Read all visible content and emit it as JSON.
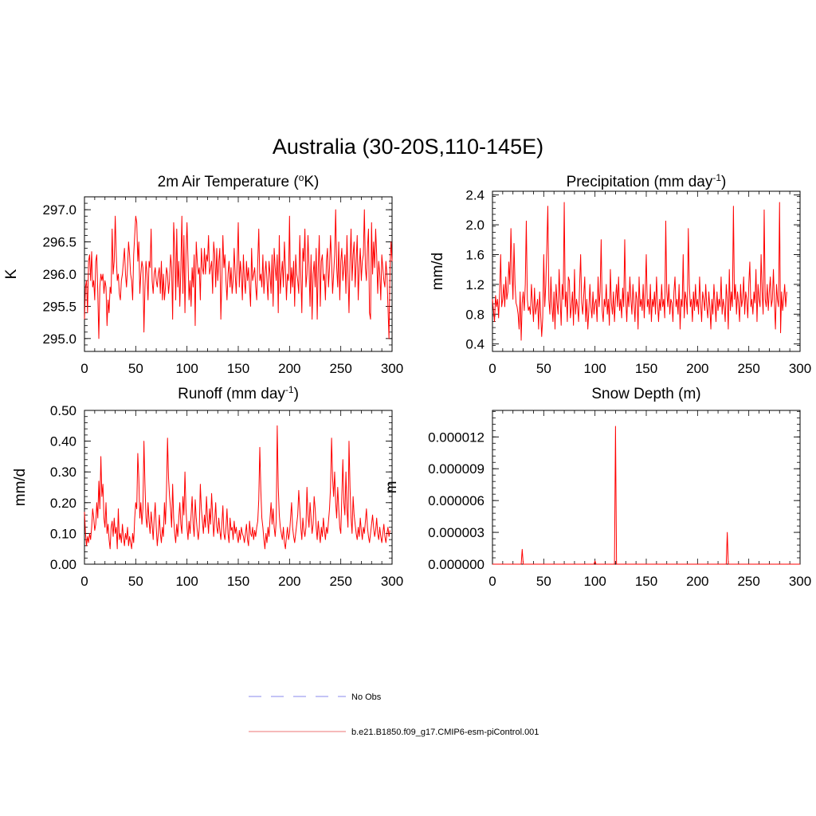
{
  "figure": {
    "title": "Australia (30-20S,110-145E)"
  },
  "legend": {
    "items": [
      {
        "label": "No Obs",
        "color": "#a0a0f0",
        "style": "dashed"
      },
      {
        "label": "b.e21.B1850.f09_g17.CMIP6-esm-piControl.001",
        "color": "#f09090",
        "style": "solid"
      }
    ]
  },
  "chart_data": [
    {
      "type": "line",
      "title": "2m Air Temperature (°K)",
      "title_parts": [
        "2m Air Temperature (",
        "o",
        "K)"
      ],
      "xlabel": "",
      "ylabel": "K",
      "xlim": [
        0,
        300
      ],
      "ylim": [
        294.8,
        297.2
      ],
      "xticks": [
        0,
        50,
        100,
        150,
        200,
        250,
        300
      ],
      "yticks": [
        295.0,
        295.5,
        296.0,
        296.5,
        297.0
      ],
      "ytick_labels": [
        "295.0",
        "295.5",
        "296.0",
        "296.5",
        "297.0"
      ],
      "series": [
        {
          "color": "#ff0000",
          "x_start": 0,
          "x_step": 1,
          "values": [
            295.3,
            295.8,
            295.9,
            295.4,
            296.2,
            296.3,
            295.9,
            296.35,
            295.8,
            295.9,
            295.6,
            296.2,
            296.3,
            295.7,
            295.0,
            295.8,
            296.0,
            295.9,
            296.0,
            295.7,
            295.9,
            295.8,
            295.2,
            295.6,
            295.4,
            295.8,
            295.7,
            296.7,
            296.0,
            296.2,
            296.9,
            296.3,
            295.9,
            296.0,
            295.7,
            295.6,
            295.9,
            296.0,
            296.2,
            296.4,
            296.0,
            295.8,
            296.1,
            296.5,
            296.3,
            296.0,
            295.9,
            295.6,
            296.3,
            296.6,
            296.9,
            296.8,
            296.2,
            296.5,
            295.7,
            296.0,
            296.2,
            296.1,
            295.1,
            295.8,
            296.2,
            296.0,
            295.6,
            296.2,
            296.1,
            296.7,
            295.9,
            295.7,
            296.0,
            296.1,
            295.9,
            295.8,
            296.0,
            296.1,
            295.7,
            296.2,
            295.6,
            296.0,
            295.6,
            295.8,
            296.1,
            296.0,
            295.7,
            295.9,
            296.3,
            296.1,
            295.3,
            296.8,
            296.4,
            295.6,
            296.7,
            295.8,
            296.2,
            295.5,
            296.1,
            296.9,
            295.7,
            296.6,
            295.4,
            296.3,
            296.8,
            296.2,
            295.6,
            295.9,
            295.5,
            296.1,
            295.8,
            296.3,
            295.2,
            296.5,
            296.2,
            296.0,
            296.1,
            295.6,
            296.4,
            296.1,
            296.0,
            296.4,
            296.0,
            296.3,
            296.2,
            296.6,
            296.0,
            296.1,
            296.2,
            295.7,
            296.5,
            296.3,
            295.8,
            296.4,
            295.9,
            296.2,
            296.4,
            295.3,
            295.9,
            296.6,
            296.1,
            296.3,
            295.9,
            295.6,
            296.0,
            296.2,
            295.8,
            296.1,
            295.7,
            295.9,
            296.4,
            296.0,
            295.7,
            296.2,
            296.8,
            295.8,
            296.2,
            296.0,
            295.6,
            296.3,
            295.9,
            295.7,
            296.2,
            295.9,
            296.1,
            295.8,
            295.5,
            296.4,
            295.9,
            296.0,
            296.1,
            295.8,
            295.6,
            296.2,
            296.7,
            295.9,
            296.0,
            295.8,
            296.3,
            295.7,
            296.0,
            296.2,
            295.9,
            295.6,
            296.2,
            296.0,
            295.7,
            296.3,
            295.5,
            296.4,
            296.1,
            295.9,
            296.3,
            295.4,
            296.6,
            295.7,
            296.0,
            296.2,
            295.8,
            296.5,
            296.1,
            295.6,
            296.0,
            295.9,
            296.9,
            295.7,
            296.1,
            295.8,
            296.2,
            295.5,
            296.3,
            296.0,
            295.9,
            295.7,
            296.6,
            296.0,
            295.4,
            296.4,
            296.2,
            296.7,
            295.8,
            296.0,
            296.6,
            296.1,
            295.5,
            296.3,
            295.3,
            296.0,
            296.2,
            295.8,
            296.4,
            295.3,
            296.1,
            296.6,
            295.5,
            296.2,
            296.3,
            295.9,
            296.0,
            295.6,
            296.2,
            296.4,
            295.8,
            296.1,
            296.6,
            296.2,
            295.7,
            296.0,
            296.3,
            297.0,
            296.1,
            295.8,
            296.5,
            295.6,
            296.2,
            296.4,
            295.9,
            296.1,
            296.3,
            295.7,
            296.6,
            296.0,
            295.4,
            296.2,
            296.7,
            295.9,
            296.3,
            296.5,
            295.8,
            296.2,
            296.6,
            295.6,
            296.1,
            296.4,
            295.9,
            296.2,
            296.3,
            297.0,
            296.1,
            295.9,
            296.4,
            296.7,
            295.4,
            295.3,
            296.8,
            296.0,
            296.5,
            296.1,
            296.7,
            296.3,
            295.7,
            296.2,
            296.0,
            295.6,
            296.3,
            296.1,
            295.9,
            295.8,
            296.2,
            296.0,
            295.5,
            295.0,
            296.1,
            296.5,
            296.2
          ]
        }
      ]
    },
    {
      "type": "line",
      "title": "Precipitation (mm day-1)",
      "title_parts": [
        "Precipitation (mm day",
        "-1",
        ")"
      ],
      "xlabel": "",
      "ylabel": "mm/d",
      "xlim": [
        0,
        300
      ],
      "ylim": [
        0.3,
        2.45
      ],
      "xticks": [
        0,
        50,
        100,
        150,
        200,
        250,
        300
      ],
      "yticks": [
        0.4,
        0.8,
        1.2,
        1.6,
        2.0,
        2.4
      ],
      "ytick_labels": [
        "0.4",
        "0.8",
        "1.2",
        "1.6",
        "2.0",
        "2.4"
      ],
      "series": [
        {
          "color": "#ff0000",
          "x_start": 0,
          "x_step": 1,
          "values": [
            1.0,
            0.85,
            0.7,
            1.05,
            0.9,
            1.0,
            0.75,
            1.1,
            1.6,
            0.9,
            1.0,
            1.2,
            0.9,
            1.3,
            1.0,
            1.1,
            1.5,
            1.2,
            1.95,
            1.4,
            1.0,
            1.75,
            1.2,
            0.95,
            0.9,
            0.8,
            0.6,
            1.1,
            0.45,
            0.95,
            1.1,
            0.85,
            1.2,
            2.05,
            1.0,
            0.85,
            0.9,
            0.8,
            1.2,
            0.95,
            0.7,
            1.15,
            0.8,
            0.9,
            1.0,
            0.6,
            1.1,
            0.8,
            0.5,
            0.75,
            1.6,
            0.9,
            1.2,
            1.7,
            2.25,
            1.0,
            0.8,
            1.3,
            0.9,
            0.7,
            1.1,
            0.6,
            1.2,
            0.95,
            0.8,
            1.4,
            1.0,
            0.65,
            1.2,
            1.0,
            2.3,
            0.9,
            1.1,
            0.7,
            1.3,
            1.25,
            0.75,
            0.9,
            1.1,
            0.65,
            1.4,
            0.8,
            1.0,
            0.9,
            0.7,
            1.2,
            1.6,
            0.95,
            0.8,
            1.05,
            1.3,
            0.7,
            1.0,
            0.6,
            0.85,
            1.2,
            0.9,
            0.75,
            1.1,
            0.8,
            0.95,
            1.0,
            0.7,
            1.3,
            0.9,
            1.1,
            1.8,
            0.85,
            0.7,
            1.0,
            0.9,
            1.2,
            0.8,
            1.0,
            0.65,
            1.4,
            0.95,
            0.8,
            1.1,
            0.7,
            1.0,
            1.2,
            0.9,
            1.3,
            0.85,
            1.0,
            0.75,
            1.15,
            0.9,
            1.8,
            1.0,
            0.7,
            1.1,
            0.9,
            1.3,
            1.0,
            0.8,
            1.2,
            0.95,
            0.7,
            1.1,
            1.0,
            0.6,
            1.3,
            0.9,
            1.0,
            0.85,
            1.2,
            0.75,
            1.1,
            1.6,
            0.9,
            1.0,
            0.8,
            1.2,
            0.7,
            1.0,
            0.9,
            1.1,
            0.8,
            1.3,
            0.95,
            0.7,
            1.0,
            0.85,
            1.2,
            0.9,
            1.0,
            0.75,
            2.05,
            1.1,
            0.9,
            1.2,
            0.8,
            1.0,
            0.95,
            0.7,
            1.1,
            1.3,
            0.9,
            1.0,
            0.8,
            1.2,
            0.6,
            1.0,
            0.9,
            1.6,
            0.75,
            1.1,
            1.0,
            0.8,
            1.95,
            1.2,
            0.9,
            1.0,
            0.7,
            1.1,
            0.85,
            1.2,
            0.9,
            1.0,
            0.8,
            1.3,
            0.95,
            0.7,
            1.1,
            1.0,
            0.85,
            1.2,
            0.9,
            0.75,
            1.1,
            0.9,
            0.6,
            1.0,
            0.8,
            1.2,
            0.95,
            0.7,
            1.1,
            0.85,
            1.0,
            0.9,
            1.3,
            0.8,
            1.0,
            0.9,
            0.7,
            1.2,
            1.0,
            0.6,
            1.4,
            0.85,
            1.1,
            0.9,
            2.25,
            1.0,
            1.2,
            0.8,
            1.1,
            0.95,
            0.7,
            1.2,
            0.9,
            1.0,
            1.3,
            0.8,
            1.1,
            1.0,
            0.75,
            1.2,
            1.5,
            0.9,
            1.0,
            0.8,
            1.1,
            0.95,
            1.4,
            0.7,
            1.2,
            1.0,
            0.9,
            1.6,
            1.1,
            0.8,
            2.2,
            1.0,
            0.9,
            1.2,
            0.85,
            1.1,
            1.3,
            0.9,
            1.0,
            1.4,
            0.95,
            0.6,
            1.2,
            1.0,
            0.9,
            2.3,
            0.55,
            1.1,
            0.85,
            1.0,
            1.2,
            0.9,
            1.1
          ]
        }
      ]
    },
    {
      "type": "line",
      "title": "Runoff (mm day-1)",
      "title_parts": [
        "Runoff (mm day",
        "-1",
        ")"
      ],
      "xlabel": "",
      "ylabel": "mm/d",
      "xlim": [
        0,
        300
      ],
      "ylim": [
        0.0,
        0.5
      ],
      "xticks": [
        0,
        50,
        100,
        150,
        200,
        250,
        300
      ],
      "yticks": [
        0.0,
        0.1,
        0.2,
        0.3,
        0.4,
        0.5
      ],
      "ytick_labels": [
        "0.00",
        "0.10",
        "0.20",
        "0.30",
        "0.40",
        "0.50"
      ],
      "series": [
        {
          "color": "#ff0000",
          "x_start": 0,
          "x_step": 1,
          "values": [
            0.17,
            0.1,
            0.06,
            0.09,
            0.07,
            0.1,
            0.08,
            0.12,
            0.18,
            0.15,
            0.11,
            0.13,
            0.2,
            0.15,
            0.27,
            0.18,
            0.35,
            0.22,
            0.26,
            0.15,
            0.12,
            0.2,
            0.1,
            0.13,
            0.08,
            0.05,
            0.12,
            0.14,
            0.09,
            0.15,
            0.1,
            0.12,
            0.05,
            0.18,
            0.08,
            0.1,
            0.07,
            0.13,
            0.09,
            0.06,
            0.1,
            0.08,
            0.12,
            0.06,
            0.09,
            0.07,
            0.05,
            0.1,
            0.07,
            0.15,
            0.2,
            0.18,
            0.36,
            0.28,
            0.15,
            0.2,
            0.13,
            0.18,
            0.4,
            0.26,
            0.15,
            0.12,
            0.2,
            0.14,
            0.1,
            0.17,
            0.13,
            0.08,
            0.15,
            0.2,
            0.12,
            0.06,
            0.1,
            0.16,
            0.1,
            0.07,
            0.12,
            0.09,
            0.2,
            0.13,
            0.24,
            0.41,
            0.28,
            0.22,
            0.18,
            0.12,
            0.26,
            0.15,
            0.1,
            0.07,
            0.13,
            0.09,
            0.15,
            0.2,
            0.13,
            0.1,
            0.22,
            0.16,
            0.3,
            0.18,
            0.12,
            0.08,
            0.14,
            0.1,
            0.16,
            0.22,
            0.13,
            0.09,
            0.21,
            0.15,
            0.11,
            0.08,
            0.12,
            0.26,
            0.18,
            0.14,
            0.1,
            0.16,
            0.12,
            0.22,
            0.15,
            0.1,
            0.18,
            0.13,
            0.23,
            0.16,
            0.09,
            0.14,
            0.2,
            0.12,
            0.1,
            0.15,
            0.11,
            0.08,
            0.13,
            0.19,
            0.1,
            0.08,
            0.12,
            0.18,
            0.1,
            0.07,
            0.15,
            0.11,
            0.12,
            0.08,
            0.14,
            0.1,
            0.12,
            0.09,
            0.07,
            0.11,
            0.08,
            0.12,
            0.1,
            0.09,
            0.07,
            0.1,
            0.13,
            0.08,
            0.06,
            0.14,
            0.1,
            0.09,
            0.12,
            0.08,
            0.11,
            0.09,
            0.12,
            0.14,
            0.21,
            0.38,
            0.24,
            0.15,
            0.12,
            0.08,
            0.05,
            0.1,
            0.07,
            0.12,
            0.09,
            0.15,
            0.2,
            0.13,
            0.18,
            0.12,
            0.09,
            0.14,
            0.45,
            0.25,
            0.16,
            0.12,
            0.1,
            0.08,
            0.12,
            0.07,
            0.05,
            0.09,
            0.12,
            0.08,
            0.1,
            0.15,
            0.2,
            0.12,
            0.09,
            0.07,
            0.1,
            0.13,
            0.16,
            0.24,
            0.18,
            0.12,
            0.08,
            0.15,
            0.11,
            0.09,
            0.12,
            0.25,
            0.16,
            0.12,
            0.2,
            0.15,
            0.1,
            0.13,
            0.22,
            0.18,
            0.12,
            0.08,
            0.14,
            0.1,
            0.07,
            0.12,
            0.09,
            0.15,
            0.11,
            0.08,
            0.12,
            0.1,
            0.14,
            0.18,
            0.25,
            0.41,
            0.28,
            0.22,
            0.3,
            0.2,
            0.15,
            0.25,
            0.18,
            0.12,
            0.1,
            0.22,
            0.34,
            0.2,
            0.16,
            0.3,
            0.18,
            0.12,
            0.4,
            0.25,
            0.15,
            0.1,
            0.22,
            0.16,
            0.13,
            0.1,
            0.08,
            0.12,
            0.09,
            0.15,
            0.11,
            0.08,
            0.12,
            0.1,
            0.14,
            0.18,
            0.12,
            0.09,
            0.07,
            0.1,
            0.13,
            0.16,
            0.12,
            0.09,
            0.11,
            0.15,
            0.1,
            0.08,
            0.12,
            0.09,
            0.07,
            0.1,
            0.13,
            0.09,
            0.07,
            0.1,
            0.12,
            0.09,
            0.11
          ]
        }
      ]
    },
    {
      "type": "line",
      "title": "Snow Depth (m)",
      "title_parts": [
        "Snow Depth (m)",
        "",
        ""
      ],
      "xlabel": "",
      "ylabel": "m",
      "xlim": [
        0,
        300
      ],
      "ylim": [
        0.0,
        1.45e-05
      ],
      "xticks": [
        0,
        50,
        100,
        150,
        200,
        250,
        300
      ],
      "yticks": [
        0.0,
        3e-06,
        6e-06,
        9e-06,
        1.2e-05
      ],
      "ytick_labels": [
        "0.000000",
        "0.000003",
        "0.000006",
        "0.000009",
        "0.000012"
      ],
      "series": [
        {
          "color": "#ff0000",
          "x": [
            0,
            28,
            29,
            30,
            99,
            100,
            101,
            119,
            120,
            121,
            228,
            229,
            230,
            300
          ],
          "y": [
            0,
            0,
            1.4e-06,
            0,
            0,
            3e-07,
            0,
            0,
            1.3e-05,
            0,
            0,
            3e-06,
            0,
            0
          ]
        }
      ]
    }
  ]
}
